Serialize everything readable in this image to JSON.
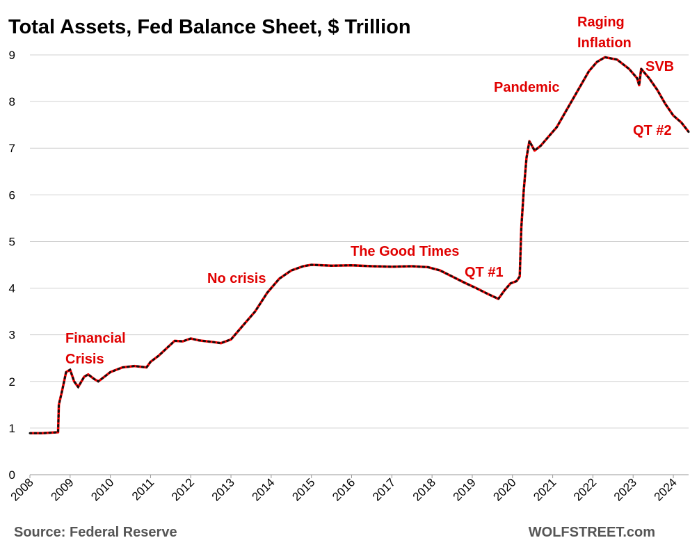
{
  "chart_data": {
    "type": "line",
    "title": "Total Assets, Fed Balance Sheet, $ Trillion",
    "source": "Source: Federal Reserve",
    "credit": "WOLFSTREET.com",
    "annotations": [
      "Financial",
      "Crisis",
      "No crisis",
      "The Good Times",
      "QT #1",
      "Pandemic",
      "Raging",
      "Inflation",
      "SVB",
      "QT #2"
    ],
    "x": [
      2008.0,
      2008.3,
      2008.7,
      2008.72,
      2008.8,
      2008.9,
      2009.0,
      2009.1,
      2009.2,
      2009.35,
      2009.45,
      2009.6,
      2009.7,
      2009.85,
      2010.0,
      2010.3,
      2010.6,
      2010.9,
      2011.0,
      2011.2,
      2011.45,
      2011.6,
      2011.8,
      2012.0,
      2012.2,
      2012.5,
      2012.75,
      2013.0,
      2013.3,
      2013.6,
      2013.9,
      2014.2,
      2014.5,
      2014.8,
      2015.0,
      2015.5,
      2016.0,
      2016.5,
      2017.0,
      2017.5,
      2017.9,
      2018.2,
      2018.5,
      2018.8,
      2019.1,
      2019.4,
      2019.65,
      2019.8,
      2019.95,
      2020.1,
      2020.18,
      2020.22,
      2020.28,
      2020.35,
      2020.42,
      2020.55,
      2020.7,
      2020.9,
      2021.1,
      2021.3,
      2021.5,
      2021.7,
      2021.9,
      2022.1,
      2022.3,
      2022.6,
      2022.9,
      2023.1,
      2023.15,
      2023.2,
      2023.4,
      2023.6,
      2023.8,
      2024.0,
      2024.2,
      2024.38
    ],
    "series": [
      {
        "color": "#ff0000",
        "values": [
          0.89,
          0.89,
          0.91,
          1.5,
          1.8,
          2.2,
          2.25,
          2.0,
          1.88,
          2.1,
          2.15,
          2.05,
          2.0,
          2.1,
          2.2,
          2.3,
          2.33,
          2.3,
          2.42,
          2.55,
          2.75,
          2.87,
          2.86,
          2.92,
          2.88,
          2.85,
          2.82,
          2.9,
          3.2,
          3.5,
          3.9,
          4.2,
          4.38,
          4.47,
          4.5,
          4.48,
          4.49,
          4.47,
          4.46,
          4.47,
          4.45,
          4.38,
          4.25,
          4.12,
          4.0,
          3.87,
          3.77,
          3.95,
          4.1,
          4.15,
          4.25,
          5.3,
          6.1,
          6.8,
          7.15,
          6.95,
          7.05,
          7.25,
          7.45,
          7.75,
          8.05,
          8.35,
          8.65,
          8.85,
          8.95,
          8.9,
          8.7,
          8.5,
          8.35,
          8.7,
          8.5,
          8.25,
          7.95,
          7.7,
          7.55,
          7.35
        ]
      }
    ],
    "xlim": [
      2008,
      2024.38
    ],
    "ylim": [
      0,
      9
    ],
    "xticks": [
      2008,
      2009,
      2010,
      2011,
      2012,
      2013,
      2014,
      2015,
      2016,
      2017,
      2018,
      2019,
      2020,
      2021,
      2022,
      2023,
      2024
    ],
    "yticks": [
      0,
      1,
      2,
      3,
      4,
      5,
      6,
      7,
      8,
      9
    ],
    "grid": true
  }
}
